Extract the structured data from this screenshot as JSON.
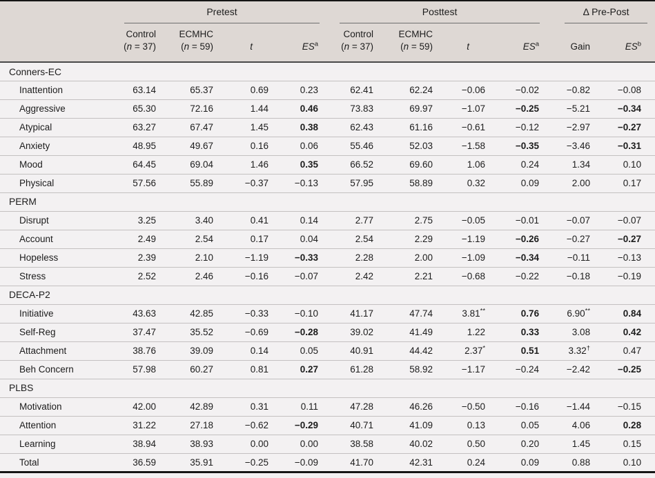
{
  "colors": {
    "header_bg": "#ded8d4",
    "body_bg": "#f3f1f2",
    "row_line": "#c3c0c0",
    "header_rule": "#484848",
    "frame": "#151515",
    "spanner_line": "#6e6e6e",
    "text": "#1c1c1c"
  },
  "header": {
    "groups": {
      "pretest": "Pretest",
      "posttest": "Posttest",
      "delta": "Δ Pre-Post"
    },
    "cols": {
      "control_label": "Control",
      "ecmhc_label": "ECMHC",
      "n_open": "(",
      "n_sym": "n",
      "control_n_rest": " = 37)",
      "ecmhc_n_rest": " = 59)",
      "t_label": "t",
      "es_label": "ES",
      "es_sup_a": "a",
      "es_sup_b": "b",
      "gain_label": "Gain"
    }
  },
  "sections": [
    {
      "label": "Conners-EC",
      "rows": [
        {
          "label": "Inattention",
          "cells": [
            "63.14",
            "65.37",
            "0.69",
            "0.23",
            "62.41",
            "62.24",
            "−0.06",
            "−0.02",
            "−0.82",
            "−0.08"
          ]
        },
        {
          "label": "Aggressive",
          "cells": [
            "65.30",
            "72.16",
            "1.44",
            {
              "v": "0.46",
              "b": true
            },
            "73.83",
            "69.97",
            "−1.07",
            {
              "v": "−0.25",
              "b": true
            },
            "−5.21",
            {
              "v": "−0.34",
              "b": true
            }
          ]
        },
        {
          "label": "Atypical",
          "cells": [
            "63.27",
            "67.47",
            "1.45",
            {
              "v": "0.38",
              "b": true
            },
            "62.43",
            "61.16",
            "−0.61",
            "−0.12",
            "−2.97",
            {
              "v": "−0.27",
              "b": true
            }
          ]
        },
        {
          "label": "Anxiety",
          "cells": [
            "48.95",
            "49.67",
            "0.16",
            "0.06",
            "55.46",
            "52.03",
            "−1.58",
            {
              "v": "−0.35",
              "b": true
            },
            "−3.46",
            {
              "v": "−0.31",
              "b": true
            }
          ]
        },
        {
          "label": "Mood",
          "cells": [
            "64.45",
            "69.04",
            "1.46",
            {
              "v": "0.35",
              "b": true
            },
            "66.52",
            "69.60",
            "1.06",
            "0.24",
            "1.34",
            "0.10"
          ]
        },
        {
          "label": "Physical",
          "cells": [
            "57.56",
            "55.89",
            "−0.37",
            "−0.13",
            "57.95",
            "58.89",
            "0.32",
            "0.09",
            "2.00",
            "0.17"
          ]
        }
      ]
    },
    {
      "label": "PERM",
      "rows": [
        {
          "label": "Disrupt",
          "cells": [
            "3.25",
            "3.40",
            "0.41",
            "0.14",
            "2.77",
            "2.75",
            "−0.05",
            "−0.01",
            "−0.07",
            "−0.07"
          ]
        },
        {
          "label": "Account",
          "cells": [
            "2.49",
            "2.54",
            "0.17",
            "0.04",
            "2.54",
            "2.29",
            "−1.19",
            {
              "v": "−0.26",
              "b": true
            },
            "−0.27",
            {
              "v": "−0.27",
              "b": true
            }
          ]
        },
        {
          "label": "Hopeless",
          "cells": [
            "2.39",
            "2.10",
            "−1.19",
            {
              "v": "−0.33",
              "b": true
            },
            "2.28",
            "2.00",
            "−1.09",
            {
              "v": "−0.34",
              "b": true
            },
            "−0.11",
            "−0.13"
          ]
        },
        {
          "label": "Stress",
          "cells": [
            "2.52",
            "2.46",
            "−0.16",
            "−0.07",
            "2.42",
            "2.21",
            "−0.68",
            "−0.22",
            "−0.18",
            "−0.19"
          ]
        }
      ]
    },
    {
      "label": "DECA-P2",
      "rows": [
        {
          "label": "Initiative",
          "cells": [
            "43.63",
            "42.85",
            "−0.33",
            "−0.10",
            "41.17",
            "47.74",
            {
              "v": "3.81",
              "s": "**"
            },
            {
              "v": "0.76",
              "b": true
            },
            {
              "v": "6.90",
              "s": "**"
            },
            {
              "v": "0.84",
              "b": true
            }
          ]
        },
        {
          "label": "Self-Reg",
          "cells": [
            "37.47",
            "35.52",
            "−0.69",
            {
              "v": "−0.28",
              "b": true
            },
            "39.02",
            "41.49",
            "1.22",
            {
              "v": "0.33",
              "b": true
            },
            "3.08",
            {
              "v": "0.42",
              "b": true
            }
          ]
        },
        {
          "label": "Attachment",
          "cells": [
            "38.76",
            "39.09",
            "0.14",
            "0.05",
            "40.91",
            "44.42",
            {
              "v": "2.37",
              "s": "*"
            },
            {
              "v": "0.51",
              "b": true
            },
            {
              "v": "3.32",
              "s": "†"
            },
            "0.47"
          ]
        },
        {
          "label": "Beh Concern",
          "cells": [
            "57.98",
            "60.27",
            "0.81",
            {
              "v": "0.27",
              "b": true
            },
            "61.28",
            "58.92",
            "−1.17",
            "−0.24",
            "−2.42",
            {
              "v": "−0.25",
              "b": true
            }
          ]
        }
      ]
    },
    {
      "label": "PLBS",
      "rows": [
        {
          "label": "Motivation",
          "cells": [
            "42.00",
            "42.89",
            "0.31",
            "0.11",
            "47.28",
            "46.26",
            "−0.50",
            "−0.16",
            "−1.44",
            "−0.15"
          ]
        },
        {
          "label": "Attention",
          "cells": [
            "31.22",
            "27.18",
            "−0.62",
            {
              "v": "−0.29",
              "b": true
            },
            "40.71",
            "41.09",
            "0.13",
            "0.05",
            "4.06",
            {
              "v": "0.28",
              "b": true
            }
          ]
        },
        {
          "label": "Learning",
          "cells": [
            "38.94",
            "38.93",
            "0.00",
            "0.00",
            "38.58",
            "40.02",
            "0.50",
            "0.20",
            "1.45",
            "0.15"
          ]
        },
        {
          "label": "Total",
          "cells": [
            "36.59",
            "35.91",
            "−0.25",
            "−0.09",
            "41.70",
            "42.31",
            "0.24",
            "0.09",
            "0.88",
            "0.10"
          ]
        }
      ]
    }
  ]
}
